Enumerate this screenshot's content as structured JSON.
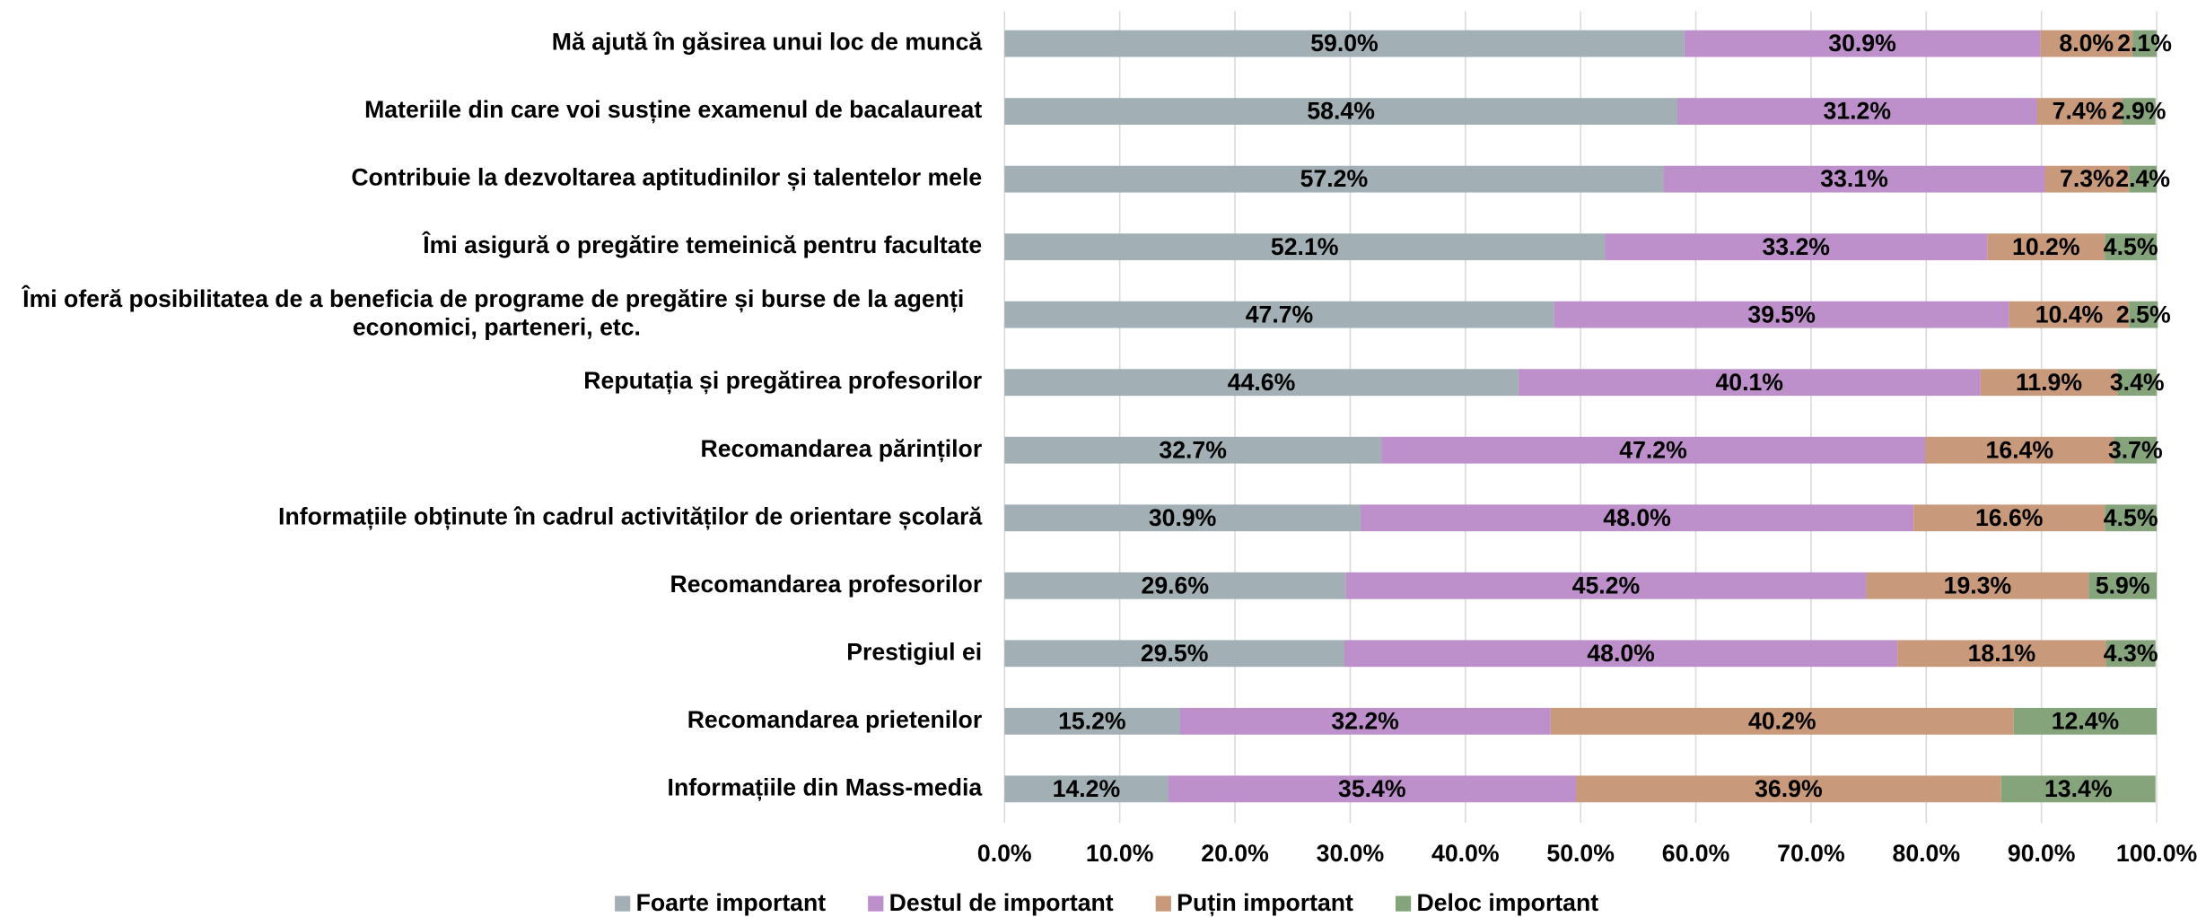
{
  "chart_data": {
    "type": "bar",
    "orientation": "horizontal",
    "stacked": true,
    "categories": [
      "Mă ajută în găsirea unui loc de muncă",
      "Materiile din care voi susține examenul de bacalaureat",
      "Contribuie la dezvoltarea aptitudinilor și talentelor mele",
      "Îmi asigură o pregătire temeinică pentru facultate",
      "Îmi oferă posibilitatea de a beneficia de programe de pregătire și burse de la agenți economici, parteneri, etc.",
      "Reputația și pregătirea profesorilor",
      "Recomandarea părinților",
      "Informațiile obținute în cadrul activităților de orientare școlară",
      "Recomandarea profesorilor",
      "Prestigiul ei",
      "Recomandarea prietenilor",
      "Informațiile din Mass-media"
    ],
    "series": [
      {
        "name": "Foarte important",
        "color": "#a2b0b5",
        "values": [
          59.0,
          58.4,
          57.2,
          52.1,
          47.7,
          44.6,
          32.7,
          30.9,
          29.6,
          29.5,
          15.2,
          14.2
        ],
        "value_labels": [
          "59.0%",
          "58.4%",
          "57.2%",
          "52.1%",
          "47.7%",
          "44.6%",
          "32.7%",
          "30.9%",
          "29.6%",
          "29.5%",
          "15.2%",
          "14.2%"
        ]
      },
      {
        "name": "Destul de important",
        "color": "#bd8fcb",
        "values": [
          30.9,
          31.2,
          33.1,
          33.2,
          39.5,
          40.1,
          47.2,
          48.0,
          45.2,
          48.0,
          32.2,
          35.4
        ],
        "value_labels": [
          "30.9%",
          "31.2%",
          "33.1%",
          "33.2%",
          "39.5%",
          "40.1%",
          "47.2%",
          "48.0%",
          "45.2%",
          "48.0%",
          "32.2%",
          "35.4%"
        ]
      },
      {
        "name": "Puțin important",
        "color": "#c89a7b",
        "values": [
          8.0,
          7.4,
          7.3,
          10.2,
          10.4,
          11.9,
          16.4,
          16.6,
          19.3,
          18.1,
          40.2,
          36.9
        ],
        "value_labels": [
          "8.0%",
          "7.4%",
          "7.3%",
          "10.2%",
          "10.4%",
          "11.9%",
          "16.4%",
          "16.6%",
          "19.3%",
          "18.1%",
          "40.2%",
          "36.9%"
        ]
      },
      {
        "name": "Deloc important",
        "color": "#85a47c",
        "values": [
          2.1,
          2.9,
          2.4,
          4.5,
          2.5,
          3.4,
          3.7,
          4.5,
          5.9,
          4.3,
          12.4,
          13.4
        ],
        "value_labels": [
          "2.1%",
          "2.9%",
          "2.4%",
          "4.5%",
          "2.5%",
          "3.4%",
          "3.7%",
          "4.5%",
          "5.9%",
          "4.3%",
          "12.4%",
          "13.4%"
        ]
      }
    ],
    "xlim": [
      0,
      100
    ],
    "xticks": [
      {
        "value": 0,
        "label": "0.0%"
      },
      {
        "value": 10,
        "label": "10.0%"
      },
      {
        "value": 20,
        "label": "20.0%"
      },
      {
        "value": 30,
        "label": "30.0%"
      },
      {
        "value": 40,
        "label": "40.0%"
      },
      {
        "value": 50,
        "label": "50.0%"
      },
      {
        "value": 60,
        "label": "60.0%"
      },
      {
        "value": 70,
        "label": "70.0%"
      },
      {
        "value": 80,
        "label": "80.0%"
      },
      {
        "value": 90,
        "label": "90.0%"
      },
      {
        "value": 100,
        "label": "100.0%"
      }
    ],
    "grid": true,
    "legend": "bottom"
  }
}
